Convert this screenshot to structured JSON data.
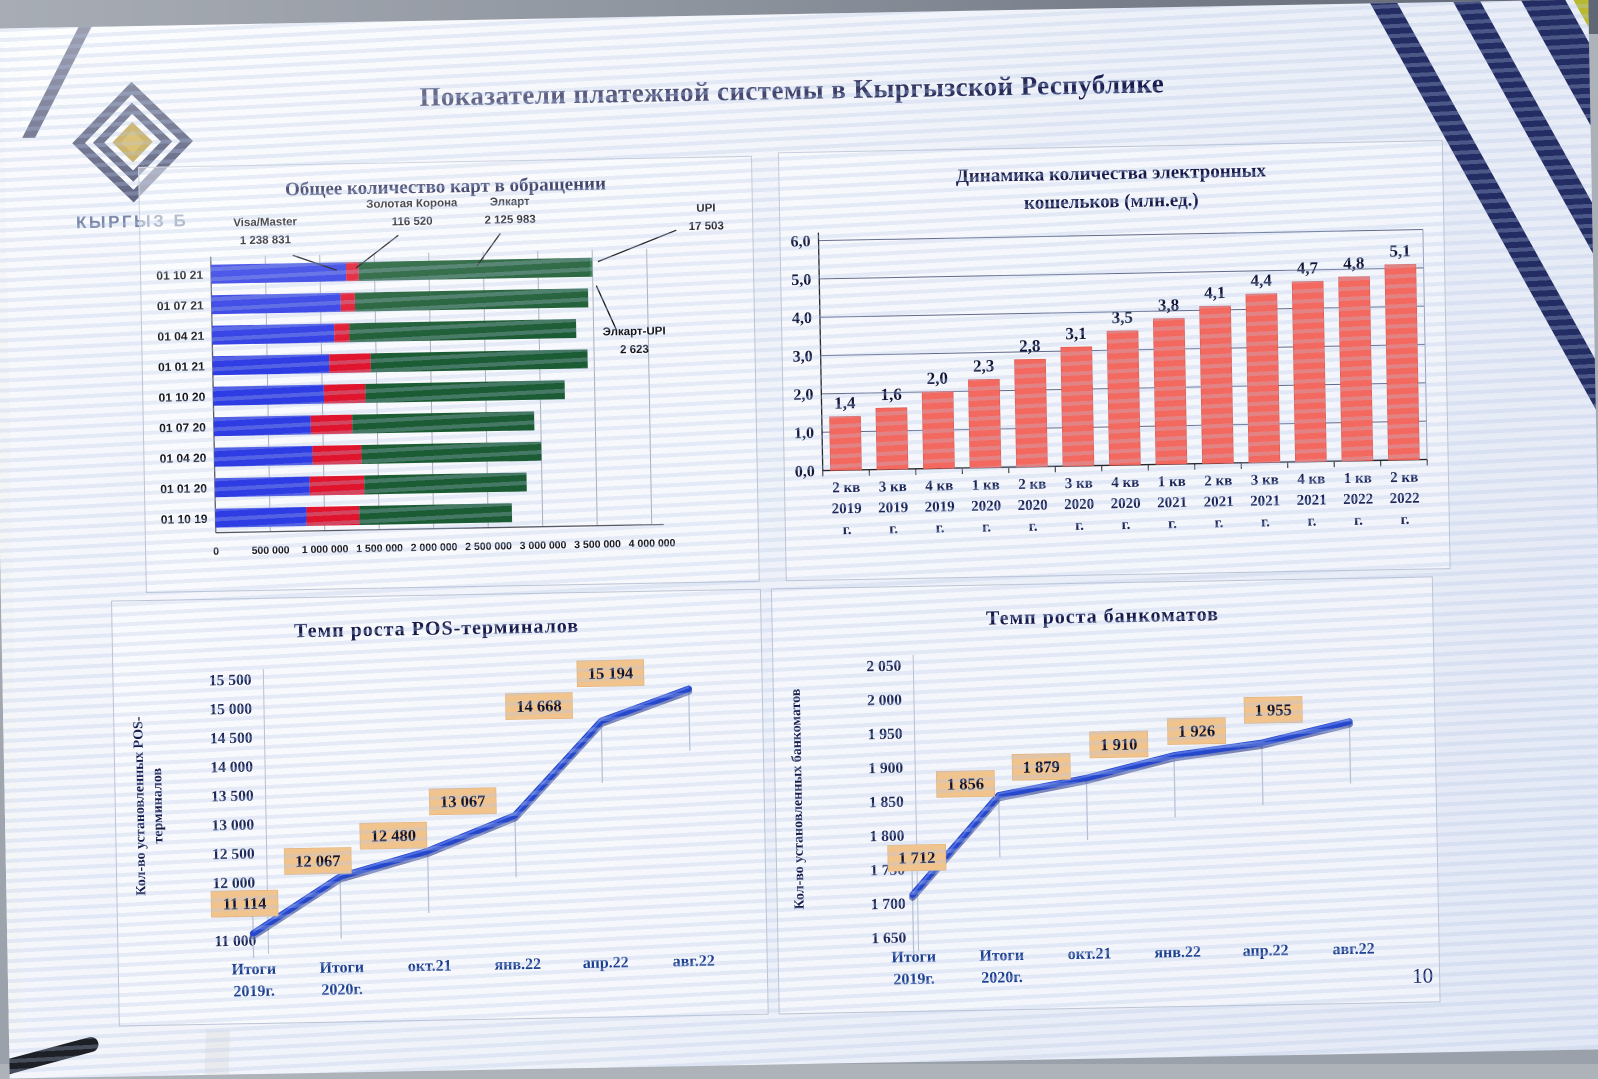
{
  "page": {
    "title": "Показатели платежной системы в Кыргызской Республике",
    "page_number": "10",
    "logo": {
      "caption": "КЫРГЫЗ Б"
    },
    "colors": {
      "bar_blue": "#2e3ce4",
      "bar_red": "#e1142d",
      "bar_green": "#1c5c34",
      "bar_coral": "#f4695f",
      "line_blue": "#2547cc",
      "label_box": "#f2c48d",
      "accent_navy": "#171c4e"
    }
  },
  "chart_data": [
    {
      "id": "cards_in_circulation",
      "type": "bar-horizontal-stacked",
      "title": "Общее количество карт в обращении",
      "categories": [
        "01 10 21",
        "01 07 21",
        "01 04 21",
        "01 01 21",
        "01 10 20",
        "01 07 20",
        "01 04 20",
        "01 01 20",
        "01 10 19"
      ],
      "series": [
        {
          "name": "Visa/Master",
          "color": "#2e3ce4",
          "values": [
            1238831,
            1185000,
            1120000,
            1070000,
            1015000,
            890000,
            900000,
            870000,
            835000
          ]
        },
        {
          "name": "Золотая Корона",
          "color": "#e1142d",
          "values": [
            116520,
            130000,
            140000,
            380000,
            380000,
            380000,
            450000,
            500000,
            485000
          ]
        },
        {
          "name": "Элкарт",
          "color": "#1c5c34",
          "values": [
            2125983,
            2140000,
            2080000,
            1990000,
            1830000,
            1670000,
            1650000,
            1490000,
            1400000
          ]
        },
        {
          "name": "UPI",
          "color": "#2e7d4f",
          "values": [
            17503,
            0,
            0,
            0,
            0,
            0,
            0,
            0,
            0
          ]
        },
        {
          "name": "Элкарт-UPI",
          "color": "#1c5c34",
          "values": [
            2623,
            0,
            0,
            0,
            0,
            0,
            0,
            0,
            0
          ]
        }
      ],
      "annotations": [
        {
          "label": "Visa/Master",
          "value": "1 238 831"
        },
        {
          "label": "Золотая Корона",
          "value": "116 520"
        },
        {
          "label": "Элкарт",
          "value": "2 125 983"
        },
        {
          "label": "UPI",
          "value": "17 503"
        },
        {
          "label": "Элкарт-UPI",
          "value": "2 623"
        }
      ],
      "x_ticks": [
        "0",
        "500 000",
        "1 000 000",
        "1 500 000",
        "2 000 000",
        "2 500 000",
        "3 000 000",
        "3 500 000",
        "4 000 000"
      ],
      "xlim": [
        0,
        4000000
      ],
      "grid": true
    },
    {
      "id": "ewallets",
      "type": "bar",
      "title_lines": [
        "Динамика количества электронных",
        "кошельков (млн.ед.)"
      ],
      "categories": [
        [
          "2 кв",
          "2019",
          "г."
        ],
        [
          "3 кв",
          "2019",
          "г."
        ],
        [
          "4 кв",
          "2019",
          "г."
        ],
        [
          "1 кв",
          "2020",
          "г."
        ],
        [
          "2 кв",
          "2020",
          "г."
        ],
        [
          "3 кв",
          "2020",
          "г."
        ],
        [
          "4 кв",
          "2020",
          "г."
        ],
        [
          "1 кв",
          "2021",
          "г."
        ],
        [
          "2 кв",
          "2021",
          "г."
        ],
        [
          "3 кв",
          "2021",
          "г."
        ],
        [
          "4 кв",
          "2021",
          "г."
        ],
        [
          "1 кв",
          "2022",
          "г."
        ],
        [
          "2 кв",
          "2022",
          "г."
        ]
      ],
      "values": [
        1.4,
        1.6,
        2.0,
        2.3,
        2.8,
        3.1,
        3.5,
        3.8,
        4.1,
        4.4,
        4.7,
        4.8,
        5.1
      ],
      "value_labels": [
        "1,4",
        "1,6",
        "2,0",
        "2,3",
        "2,8",
        "3,1",
        "3,5",
        "3,8",
        "4,1",
        "4,4",
        "4,7",
        "4,8",
        "5,1"
      ],
      "y_ticks": [
        "0,0",
        "1,0",
        "2,0",
        "3,0",
        "4,0",
        "5,0",
        "6,0"
      ],
      "ylim": [
        0,
        6
      ],
      "bar_color": "#f4695f",
      "grid": true
    },
    {
      "id": "pos_terminals",
      "type": "line",
      "title": "Темп роста POS-терминалов",
      "ylabel_lines": [
        "Кол-во установленных POS-",
        "терминалов"
      ],
      "categories": [
        [
          "Итоги",
          "2019г."
        ],
        [
          "Итоги",
          "2020г."
        ],
        [
          "окт.21"
        ],
        [
          "янв.22"
        ],
        [
          "апр.22"
        ],
        [
          "авг.22"
        ]
      ],
      "values": [
        11114,
        12067,
        12480,
        13067,
        14668,
        15194
      ],
      "value_labels": [
        "11 114",
        "12 067",
        "12 480",
        "13 067",
        "14 668",
        "15 194"
      ],
      "y_ticks": [
        "11 000",
        "11 500",
        "12 000",
        "12 500",
        "13 000",
        "13 500",
        "14 000",
        "14 500",
        "15 000",
        "15 500"
      ],
      "ylim": [
        11000,
        15500
      ],
      "grid": false
    },
    {
      "id": "atms",
      "type": "line",
      "title": "Темп роста банкоматов",
      "ylabel_lines": [
        "Кол-во установленных банкоматов"
      ],
      "categories": [
        [
          "Итоги",
          "2019г."
        ],
        [
          "Итоги",
          "2020г."
        ],
        [
          "окт.21"
        ],
        [
          "янв.22"
        ],
        [
          "апр.22"
        ],
        [
          "авг.22"
        ]
      ],
      "values": [
        1712,
        1856,
        1879,
        1910,
        1926,
        1955
      ],
      "value_labels": [
        "1 712",
        "1 856",
        "1 879",
        "1 910",
        "1 926",
        "1 955"
      ],
      "y_ticks": [
        "1 650",
        "1 700",
        "1 750",
        "1 800",
        "1 850",
        "1 900",
        "1 950",
        "2 000",
        "2 050"
      ],
      "ylim": [
        1650,
        2050
      ],
      "grid": false
    }
  ]
}
